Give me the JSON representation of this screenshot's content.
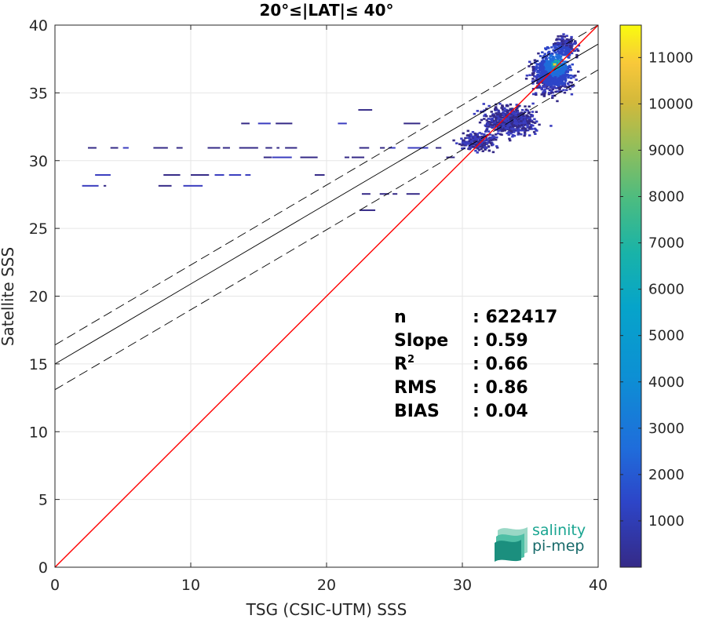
{
  "chart_data": {
    "type": "heatmap",
    "title": "20°≤|LAT|≤ 40°",
    "xlabel": "TSG (CSIC-UTM) SSS",
    "ylabel": "Satellite SSS",
    "xlim": [
      0,
      40
    ],
    "ylim": [
      0,
      40
    ],
    "xticks": [
      "0",
      "10",
      "20",
      "30",
      "40"
    ],
    "yticks": [
      "0",
      "5",
      "10",
      "15",
      "20",
      "25",
      "30",
      "35",
      "40"
    ],
    "grid": true,
    "colorbar": {
      "colormap": "parula",
      "min": 0,
      "max": 11700,
      "ticks": [
        "1000",
        "2000",
        "3000",
        "4000",
        "5000",
        "6000",
        "7000",
        "8000",
        "9000",
        "10000",
        "11000"
      ]
    },
    "lines": {
      "identity": {
        "slope": 1,
        "intercept": 0,
        "color": "#ff0000"
      },
      "fit": {
        "slope": 0.59,
        "intercept": 15.0,
        "color": "#000000"
      },
      "fit_band_upper": {
        "slope": 0.59,
        "intercept": 16.4,
        "color": "#000000"
      },
      "fit_band_lower": {
        "slope": 0.59,
        "intercept": 13.1,
        "color": "#000000"
      }
    },
    "density_clusters": [
      {
        "x": 36.5,
        "y": 36.5,
        "sx": 1.6,
        "sy": 1.8,
        "n": 900
      },
      {
        "x": 33.5,
        "y": 33.0,
        "sx": 2.2,
        "sy": 1.3,
        "n": 700
      },
      {
        "x": 37.5,
        "y": 38.5,
        "sx": 1.0,
        "sy": 1.0,
        "n": 200
      },
      {
        "x": 31.0,
        "y": 31.5,
        "sx": 1.6,
        "sy": 0.8,
        "n": 250
      }
    ],
    "density_core": {
      "x": 36.8,
      "y": 37.1,
      "value": 11000
    },
    "horizontal_streaks": [
      {
        "x0": 1.2,
        "x1": 28.5,
        "y": 31.0
      },
      {
        "x0": 1.0,
        "x1": 22.0,
        "y": 29.0
      },
      {
        "x0": 12.5,
        "x1": 27.5,
        "y": 32.8
      },
      {
        "x0": 21.5,
        "x1": 27.0,
        "y": 27.6
      },
      {
        "x0": 20.5,
        "x1": 24.0,
        "y": 26.4
      },
      {
        "x0": 14.0,
        "x1": 30.0,
        "y": 30.3
      },
      {
        "x0": 2.0,
        "x1": 10.0,
        "y": 28.2
      },
      {
        "x0": 20.0,
        "x1": 25.0,
        "y": 33.8
      }
    ],
    "stats": [
      {
        "label": "n",
        "value": ": 622417"
      },
      {
        "label": "Slope",
        "value": ": 0.59"
      },
      {
        "label": "R",
        "sup": "2",
        "value": ": 0.66"
      },
      {
        "label": "RMS",
        "value": ": 0.86"
      },
      {
        "label": "BIAS",
        "value": ": 0.04"
      }
    ]
  },
  "logo": {
    "line1": "salinity",
    "line2": "pi-mep"
  }
}
